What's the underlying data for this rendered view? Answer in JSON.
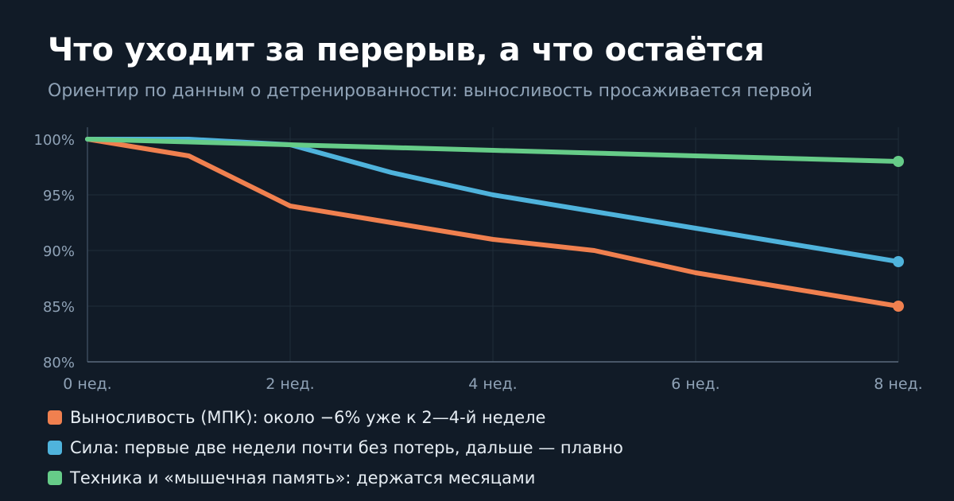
{
  "header": {
    "title": "Что уходит за перерыв, а что остаётся",
    "subtitle": "Ориентир по данным о детренированности: выносливость просаживается первой"
  },
  "chart_data": {
    "type": "line",
    "title": "Что уходит за перерыв, а что остаётся",
    "subtitle": "Ориентир по данным о детренированности: выносливость просаживается первой",
    "xlabel": "",
    "ylabel": "",
    "x": [
      0,
      1,
      2,
      3,
      4,
      5,
      6,
      7,
      8
    ],
    "x_ticks": [
      {
        "value": 0,
        "label": "0 нед."
      },
      {
        "value": 2,
        "label": "2 нед."
      },
      {
        "value": 4,
        "label": "4 нед."
      },
      {
        "value": 6,
        "label": "6 нед."
      },
      {
        "value": 8,
        "label": "8 нед."
      }
    ],
    "y_ticks": [
      {
        "value": 80,
        "label": "80%"
      },
      {
        "value": 85,
        "label": "85%"
      },
      {
        "value": 90,
        "label": "90%"
      },
      {
        "value": 95,
        "label": "95%"
      },
      {
        "value": 100,
        "label": "100%"
      }
    ],
    "xlim": [
      0,
      8
    ],
    "ylim": [
      80,
      100
    ],
    "grid": true,
    "legend_position": "bottom",
    "series": [
      {
        "name": "Выносливость (МПК): около −6% уже к 2—4-й неделе",
        "color": "#f0804f",
        "values": [
          100,
          98.5,
          94,
          92.5,
          91,
          90,
          88,
          86.5,
          85
        ]
      },
      {
        "name": "Сила: первые две недели почти без потерь, дальше — плавно",
        "color": "#4fb3dc",
        "values": [
          100,
          100,
          99.5,
          97,
          95,
          93.5,
          92,
          90.5,
          89
        ]
      },
      {
        "name": "Техника и «мышечная память»: держатся месяцами",
        "color": "#66cc88",
        "values": [
          100,
          99.75,
          99.5,
          99.25,
          99,
          98.75,
          98.5,
          98.25,
          98
        ]
      }
    ]
  }
}
